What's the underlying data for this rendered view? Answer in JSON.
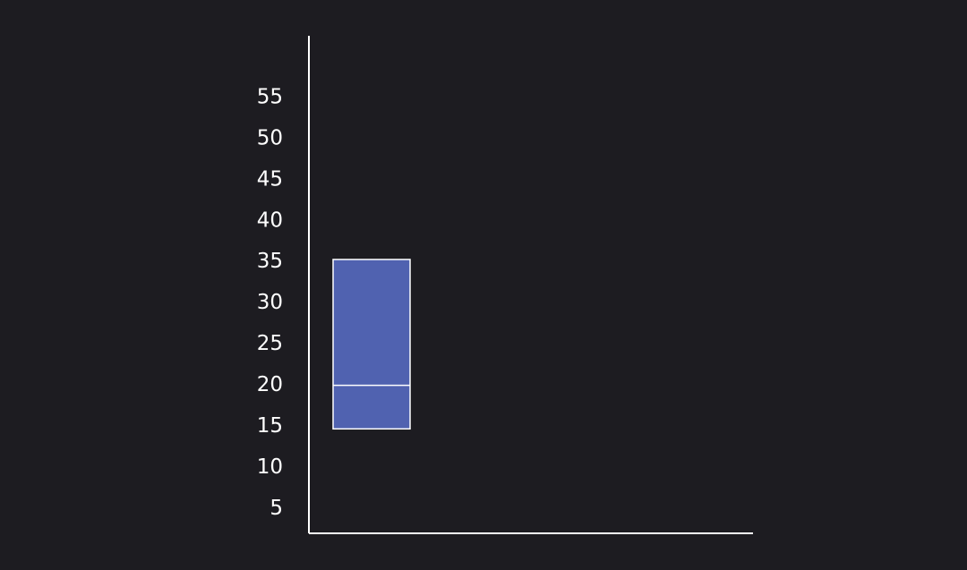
{
  "chart_data": {
    "type": "box",
    "title": "",
    "xlabel": "",
    "ylabel": "",
    "y_ticks": [
      "5",
      "10",
      "15",
      "20",
      "25",
      "30",
      "35",
      "40",
      "45",
      "50",
      "55"
    ],
    "ylim": [
      2,
      62.5
    ],
    "grid": false,
    "series": [
      {
        "q1": 14.7,
        "median": 20,
        "q3": 35.3
      }
    ],
    "colors": {
      "background": "#1d1c21",
      "box_fill": "#5062b0",
      "box_stroke": "#ffffff",
      "axis": "#ffffff",
      "text": "#ffffff"
    }
  }
}
